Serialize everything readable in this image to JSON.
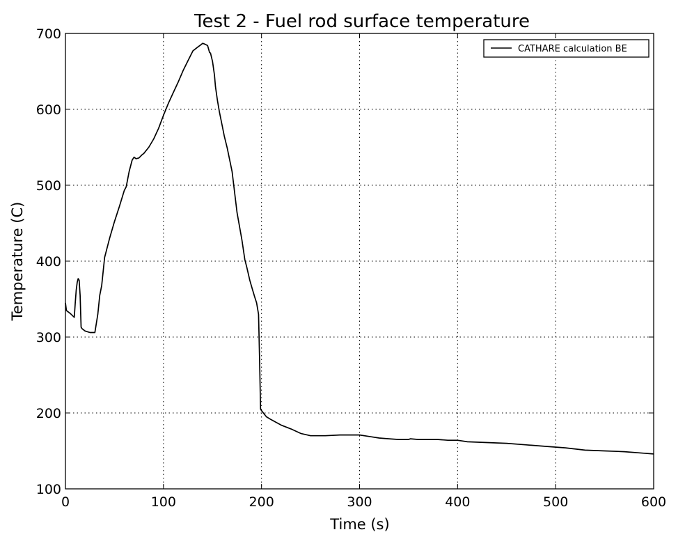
{
  "chart_data": {
    "type": "line",
    "title": "Test 2 - Fuel rod surface temperature",
    "xlabel": "Time (s)",
    "ylabel": "Temperature (C)",
    "xlim": [
      0,
      600
    ],
    "ylim": [
      100,
      700
    ],
    "xticks": [
      0,
      100,
      200,
      300,
      400,
      500,
      600
    ],
    "yticks": [
      100,
      200,
      300,
      400,
      500,
      600,
      700
    ],
    "xtick_labels": [
      "0",
      "100",
      "200",
      "300",
      "400",
      "500",
      "600"
    ],
    "ytick_labels": [
      "100",
      "200",
      "300",
      "400",
      "500",
      "600",
      "700"
    ],
    "grid": true,
    "legend_position": "top-right",
    "series": [
      {
        "name": "CATHARE calculation BE",
        "color": "#000000",
        "x": [
          0,
          1,
          5,
          9,
          10,
          11,
          12,
          13,
          14,
          15,
          16,
          17,
          18,
          20,
          25,
          30,
          33,
          35,
          37,
          40,
          45,
          50,
          55,
          60,
          62,
          65,
          68,
          70,
          72,
          75,
          78,
          80,
          85,
          90,
          95,
          100,
          105,
          110,
          115,
          120,
          125,
          130,
          135,
          138,
          140,
          142,
          145,
          147,
          148,
          150,
          152,
          153,
          155,
          157,
          160,
          162,
          165,
          170,
          175,
          180,
          183,
          185,
          188,
          190,
          193,
          195,
          197,
          198,
          199,
          200,
          205,
          210,
          220,
          230,
          240,
          250,
          265,
          280,
          290,
          300,
          310,
          320,
          330,
          340,
          350,
          352,
          360,
          370,
          380,
          390,
          400,
          410,
          430,
          450,
          470,
          490,
          510,
          530,
          550,
          570,
          590,
          600
        ],
        "y": [
          345,
          335,
          331,
          326,
          345,
          362,
          372,
          377,
          375,
          355,
          313,
          311,
          310,
          308,
          306,
          306,
          330,
          355,
          368,
          405,
          430,
          452,
          472,
          493,
          498,
          518,
          533,
          537,
          535,
          536,
          540,
          542,
          550,
          561,
          575,
          592,
          608,
          622,
          636,
          651,
          664,
          677,
          682,
          685,
          687,
          686,
          684,
          675,
          674,
          663,
          645,
          630,
          612,
          597,
          578,
          565,
          549,
          518,
          464,
          428,
          402,
          392,
          375,
          366,
          353,
          345,
          330,
          270,
          205,
          203,
          195,
          191,
          184,
          179,
          173,
          170,
          170,
          171,
          171,
          171,
          169,
          167,
          166,
          165,
          165,
          166,
          165,
          165,
          165,
          164,
          164,
          162,
          161,
          160,
          158,
          156,
          154,
          151,
          150,
          149,
          147,
          146
        ]
      }
    ]
  }
}
